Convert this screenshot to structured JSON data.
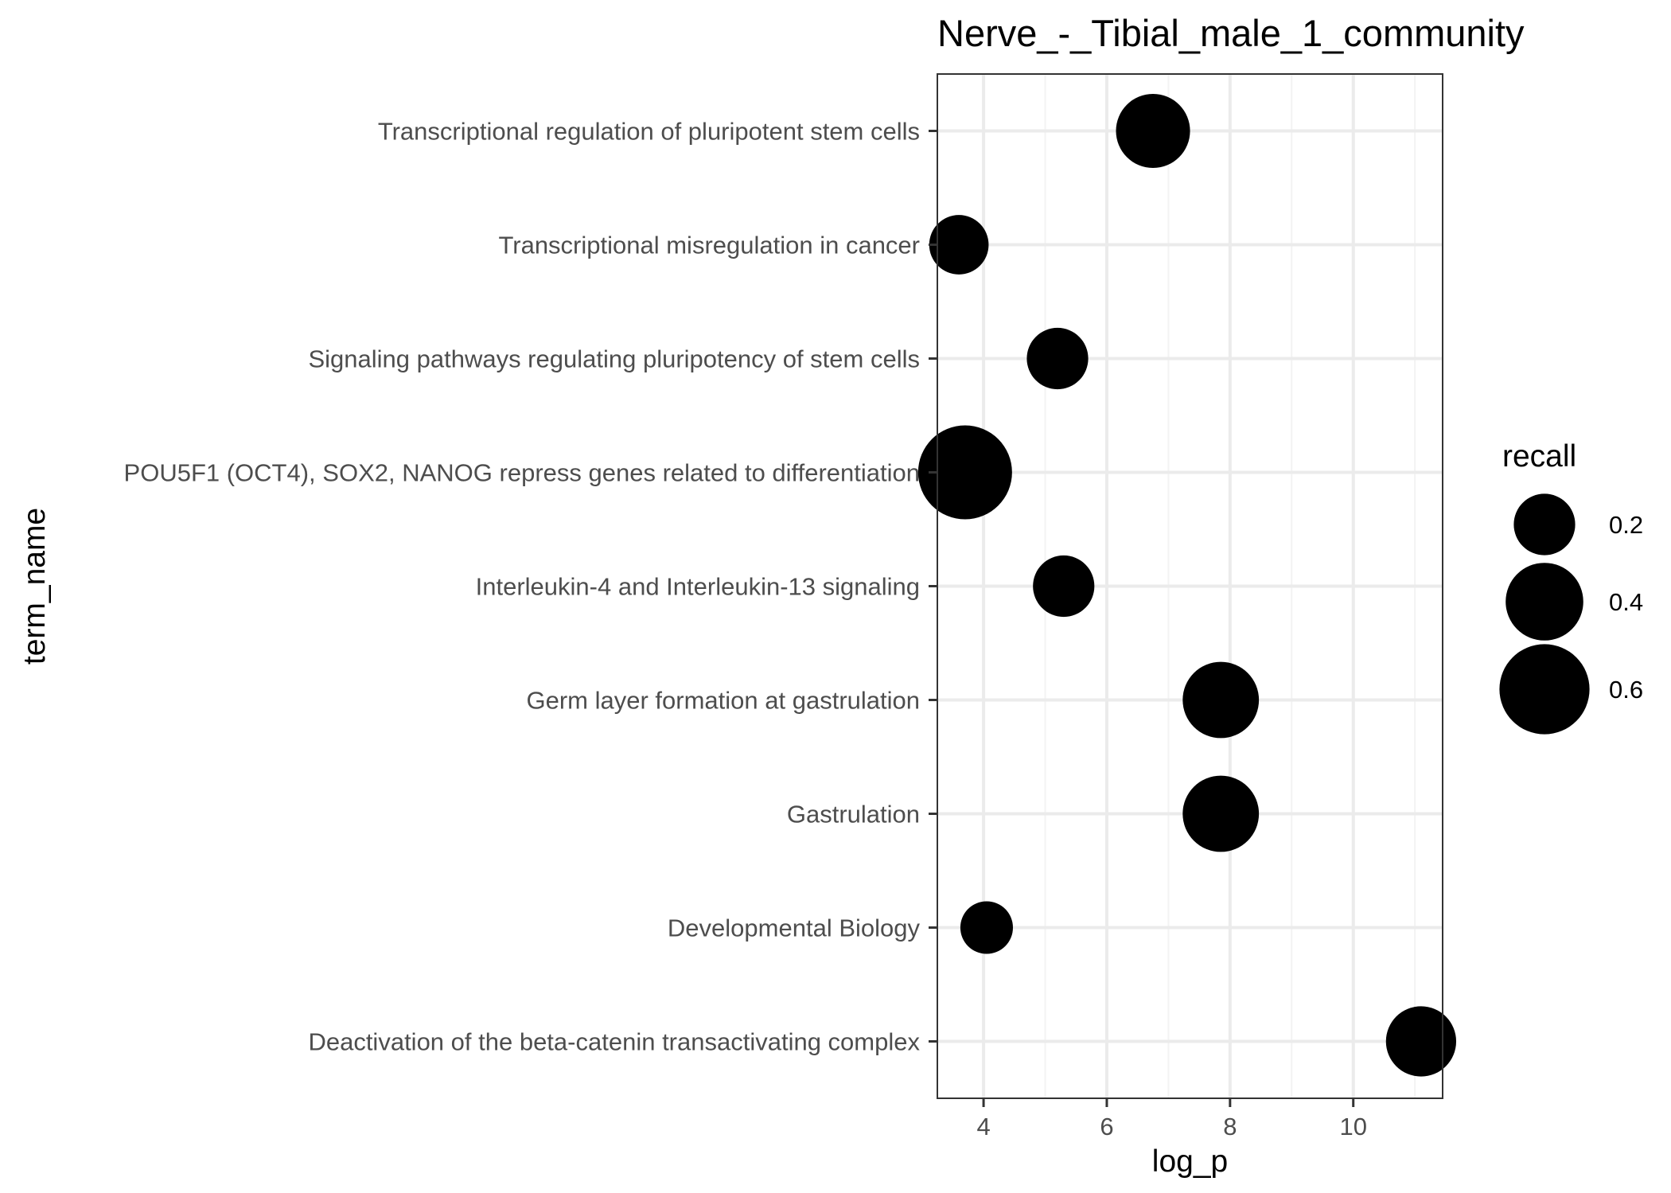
{
  "chart_data": {
    "type": "scatter",
    "title": "Nerve_-_Tibial_male_1_community",
    "xlabel": "log_p",
    "ylabel": "term_name",
    "xlim": [
      3.25,
      11.45
    ],
    "x_ticks": [
      4,
      6,
      8,
      10
    ],
    "x_tick_labels": [
      "4",
      "6",
      "8",
      "10"
    ],
    "grid": true,
    "categories": [
      "Transcriptional regulation of pluripotent stem cells",
      "Transcriptional misregulation in cancer",
      "Signaling pathways regulating pluripotency of stem cells",
      "POU5F1 (OCT4), SOX2, NANOG repress genes related to differentiation",
      "Interleukin-4 and Interleukin-13 signaling",
      "Germ layer formation at gastrulation",
      "Gastrulation",
      "Developmental Biology",
      "Deactivation of the beta-catenin transactivating complex"
    ],
    "points": [
      {
        "term": "Transcriptional regulation of pluripotent stem cells",
        "log_p": 6.75,
        "recall": 0.35
      },
      {
        "term": "Transcriptional misregulation in cancer",
        "log_p": 3.6,
        "recall": 0.18
      },
      {
        "term": "Signaling pathways regulating pluripotency of stem cells",
        "log_p": 5.2,
        "recall": 0.2
      },
      {
        "term": "POU5F1 (OCT4), SOX2, NANOG repress genes related to differentiation",
        "log_p": 3.7,
        "recall": 0.67
      },
      {
        "term": "Interleukin-4 and Interleukin-13 signaling",
        "log_p": 5.3,
        "recall": 0.2
      },
      {
        "term": "Germ layer formation at gastrulation",
        "log_p": 7.85,
        "recall": 0.38
      },
      {
        "term": "Gastrulation",
        "log_p": 7.85,
        "recall": 0.38
      },
      {
        "term": "Developmental Biology",
        "log_p": 4.05,
        "recall": 0.12
      },
      {
        "term": "Deactivation of the beta-catenin transactivating complex",
        "log_p": 11.1,
        "recall": 0.3
      }
    ],
    "size_legend": {
      "title": "recall",
      "position": "right",
      "values": [
        0.2,
        0.4,
        0.6
      ],
      "labels": [
        "0.2",
        "0.4",
        "0.6"
      ]
    },
    "colors": {
      "point": "#000000",
      "grid_major": "#ebebeb",
      "grid_minor": "#f3f3f3",
      "panel_border": "#333333",
      "tick_text": "#4d4d4d"
    }
  }
}
